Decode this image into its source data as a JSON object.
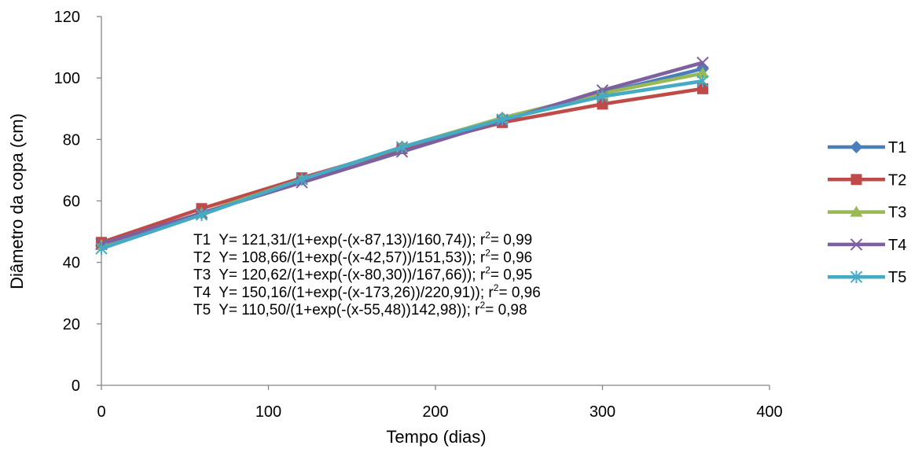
{
  "chart_data": {
    "type": "line",
    "xlabel": "Tempo (dias)",
    "ylabel": "Diâmetro da copa (cm)",
    "xlim": [
      0,
      400
    ],
    "ylim": [
      0,
      120
    ],
    "xticks": [
      0,
      100,
      200,
      300,
      400
    ],
    "yticks": [
      0,
      20,
      40,
      60,
      80,
      100,
      120
    ],
    "grid": false,
    "legend_position": "right",
    "x": [
      0,
      60,
      120,
      180,
      240,
      300,
      360
    ],
    "series": [
      {
        "name": "T1",
        "color": "#4A7EBB",
        "marker": "diamond",
        "values": [
          45.5,
          56.0,
          67.0,
          77.5,
          87.0,
          95.0,
          103.0
        ]
      },
      {
        "name": "T2",
        "color": "#BE4B48",
        "marker": "square",
        "values": [
          46.5,
          57.5,
          67.5,
          77.0,
          85.5,
          91.5,
          96.5
        ]
      },
      {
        "name": "T3",
        "color": "#98B954",
        "marker": "triangle",
        "values": [
          45.5,
          56.0,
          67.0,
          77.5,
          87.0,
          95.0,
          101.5
        ]
      },
      {
        "name": "T4",
        "color": "#7D60A0",
        "marker": "x",
        "values": [
          46.0,
          56.0,
          66.0,
          76.0,
          86.0,
          96.0,
          105.0
        ]
      },
      {
        "name": "T5",
        "color": "#46AAC5",
        "marker": "star",
        "values": [
          44.5,
          55.5,
          67.0,
          77.5,
          86.5,
          94.0,
          99.0
        ]
      }
    ],
    "annotations": [
      {
        "label": "T1",
        "equation": "Y= 121,31/(1+exp(-(x-87,13))/160,74)); r",
        "sup": "2",
        "r2": "= 0,99"
      },
      {
        "label": "T2",
        "equation": "Y= 108,66/(1+exp(-(x-42,57))/151,53)); r",
        "sup": "2",
        "r2": "= 0,96"
      },
      {
        "label": "T3",
        "equation": "Y= 120,62/(1+exp(-(x-80,30))/167,66)); r",
        "sup": "2",
        "r2": "= 0,95"
      },
      {
        "label": "T4",
        "equation": "Y= 150,16/(1+exp(-(x-173,26))/220,91)); r",
        "sup": "2",
        "r2": "= 0,96"
      },
      {
        "label": "T5",
        "equation": "Y= 110,50/(1+exp(-(x-55,48))142,98)); r",
        "sup": "2",
        "r2": "= 0,98"
      }
    ]
  }
}
